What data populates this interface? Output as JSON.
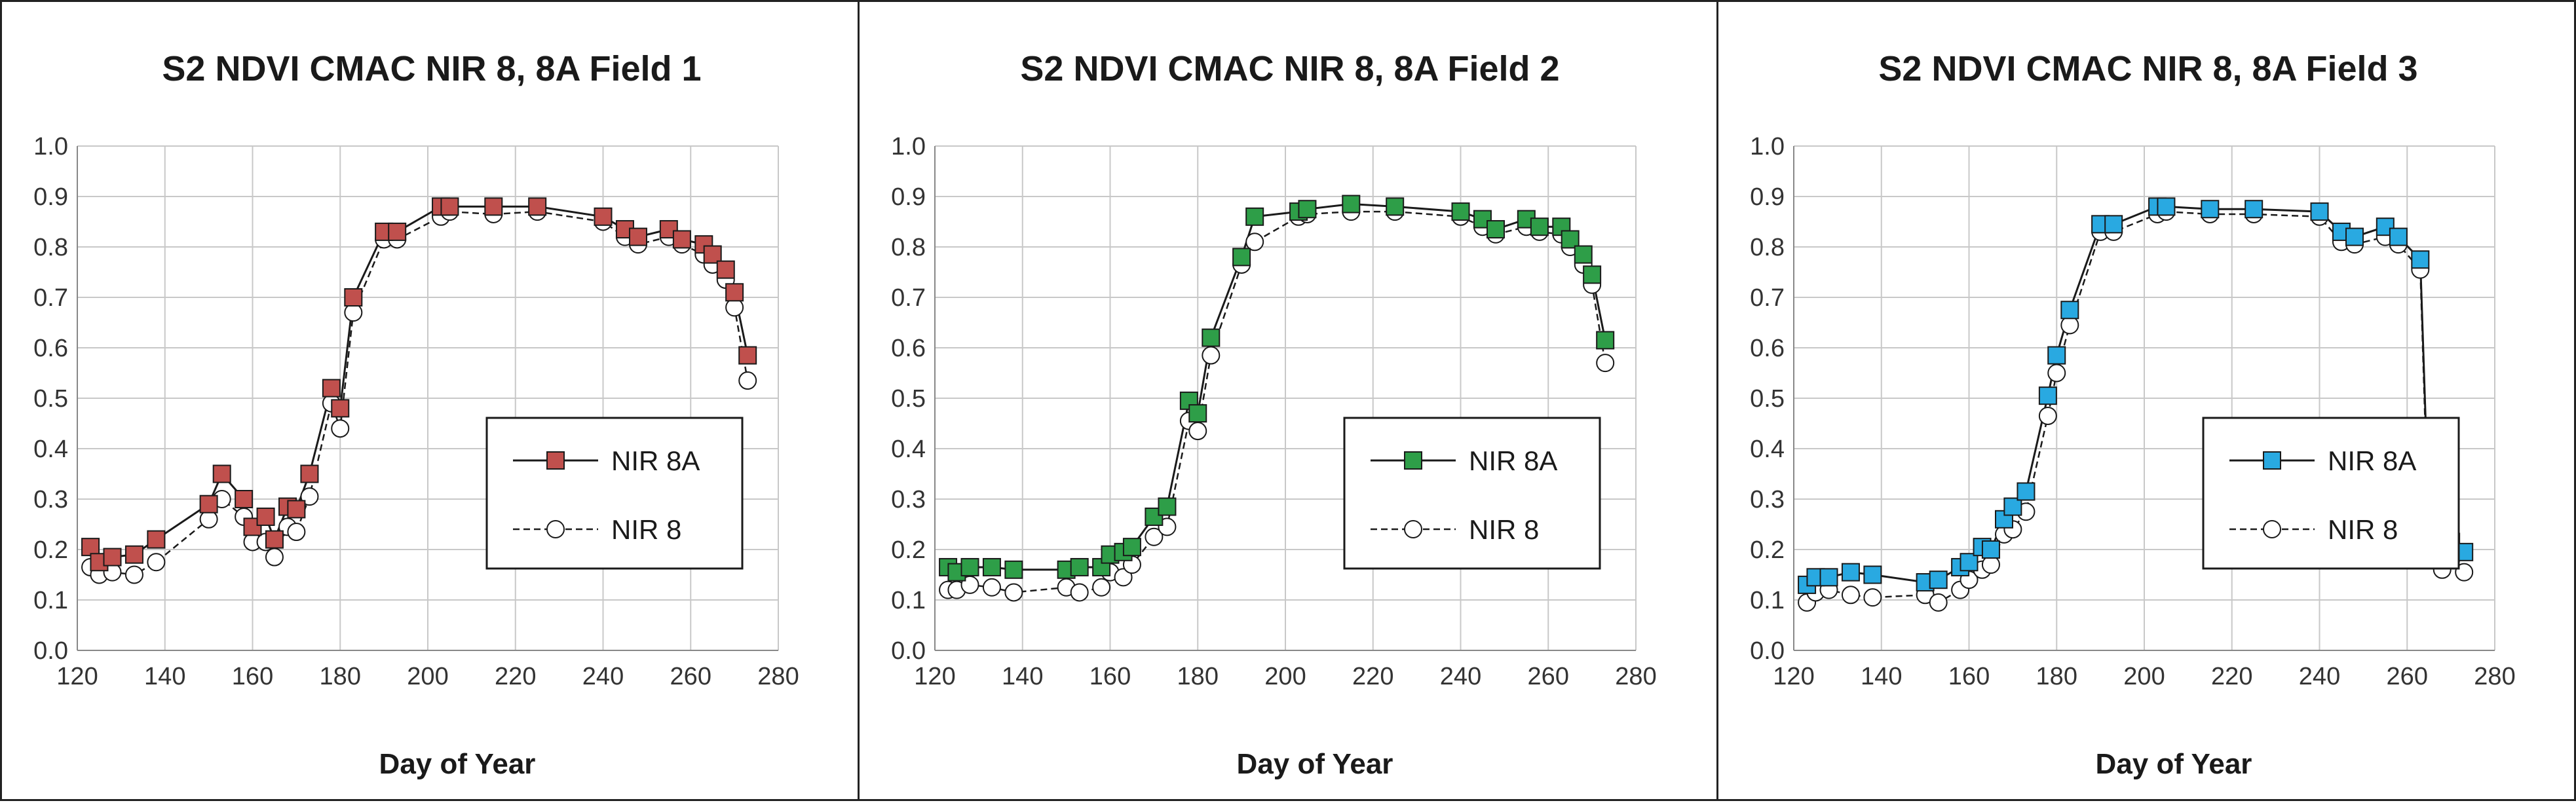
{
  "chart_data": [
    {
      "type": "line",
      "title": "S2 NDVI CMAC NIR 8, 8A  Field 1",
      "xlabel": "Day of Year",
      "ylabel": "",
      "xlim": [
        120,
        280
      ],
      "ylim": [
        0.0,
        1.0
      ],
      "xticks": [
        "120",
        "140",
        "160",
        "180",
        "200",
        "220",
        "240",
        "260",
        "280"
      ],
      "yticks": [
        "0.0",
        "0.1",
        "0.2",
        "0.3",
        "0.4",
        "0.5",
        "0.6",
        "0.7",
        "0.8",
        "0.9",
        "1.0"
      ],
      "grid": true,
      "legend_position": "center-right",
      "series": [
        {
          "name": "NIR 8A",
          "marker": "square",
          "line": "solid",
          "color": "#c0504d",
          "x": [
            123,
            125,
            128,
            133,
            138,
            150,
            153,
            158,
            160,
            163,
            165,
            168,
            170,
            173,
            178,
            180,
            183,
            190,
            193,
            203,
            205,
            215,
            225,
            240,
            245,
            248,
            255,
            258,
            263,
            265,
            268,
            270,
            273
          ],
          "y": [
            0.205,
            0.175,
            0.185,
            0.19,
            0.22,
            0.29,
            0.35,
            0.3,
            0.245,
            0.265,
            0.22,
            0.285,
            0.28,
            0.35,
            0.52,
            0.48,
            0.7,
            0.83,
            0.83,
            0.88,
            0.88,
            0.88,
            0.88,
            0.86,
            0.835,
            0.82,
            0.835,
            0.815,
            0.805,
            0.785,
            0.755,
            0.71,
            0.585
          ]
        },
        {
          "name": "NIR 8",
          "marker": "circle",
          "line": "dashed",
          "color": "#ffffff",
          "x": [
            123,
            125,
            128,
            133,
            138,
            150,
            153,
            158,
            160,
            163,
            165,
            168,
            170,
            173,
            178,
            180,
            183,
            190,
            193,
            203,
            205,
            215,
            225,
            240,
            245,
            248,
            255,
            258,
            263,
            265,
            268,
            270,
            273
          ],
          "y": [
            0.165,
            0.15,
            0.155,
            0.15,
            0.175,
            0.26,
            0.3,
            0.265,
            0.215,
            0.215,
            0.185,
            0.245,
            0.235,
            0.305,
            0.49,
            0.44,
            0.67,
            0.815,
            0.815,
            0.86,
            0.87,
            0.865,
            0.87,
            0.85,
            0.82,
            0.805,
            0.82,
            0.805,
            0.785,
            0.765,
            0.735,
            0.68,
            0.535
          ]
        }
      ]
    },
    {
      "type": "line",
      "title": "S2 NDVI CMAC NIR 8, 8A   Field 2",
      "xlabel": "Day of Year",
      "ylabel": "",
      "xlim": [
        120,
        280
      ],
      "ylim": [
        0.0,
        1.0
      ],
      "xticks": [
        "120",
        "140",
        "160",
        "180",
        "200",
        "220",
        "240",
        "260",
        "280"
      ],
      "yticks": [
        "0.0",
        "0.1",
        "0.2",
        "0.3",
        "0.4",
        "0.5",
        "0.6",
        "0.7",
        "0.8",
        "0.9",
        "1.0"
      ],
      "grid": true,
      "legend_position": "center-right",
      "series": [
        {
          "name": "NIR 8A",
          "marker": "square",
          "line": "solid",
          "color": "#2e9e48",
          "x": [
            123,
            125,
            128,
            133,
            138,
            150,
            153,
            158,
            160,
            163,
            165,
            170,
            173,
            178,
            180,
            183,
            190,
            193,
            203,
            205,
            215,
            225,
            240,
            245,
            248,
            255,
            258,
            263,
            265,
            268,
            270,
            273
          ],
          "y": [
            0.165,
            0.155,
            0.165,
            0.165,
            0.16,
            0.16,
            0.165,
            0.165,
            0.19,
            0.195,
            0.205,
            0.265,
            0.285,
            0.495,
            0.47,
            0.62,
            0.78,
            0.86,
            0.87,
            0.875,
            0.885,
            0.88,
            0.87,
            0.855,
            0.835,
            0.855,
            0.84,
            0.84,
            0.815,
            0.785,
            0.745,
            0.615
          ]
        },
        {
          "name": "NIR 8",
          "marker": "circle",
          "line": "dashed",
          "color": "#ffffff",
          "x": [
            123,
            125,
            128,
            133,
            138,
            150,
            153,
            158,
            160,
            163,
            165,
            170,
            173,
            178,
            180,
            183,
            190,
            193,
            203,
            205,
            215,
            225,
            240,
            245,
            248,
            255,
            258,
            263,
            265,
            268,
            270,
            273
          ],
          "y": [
            0.12,
            0.12,
            0.13,
            0.125,
            0.115,
            0.125,
            0.115,
            0.125,
            0.155,
            0.145,
            0.17,
            0.225,
            0.245,
            0.455,
            0.435,
            0.585,
            0.765,
            0.81,
            0.86,
            0.865,
            0.87,
            0.87,
            0.86,
            0.84,
            0.825,
            0.84,
            0.83,
            0.825,
            0.8,
            0.765,
            0.725,
            0.57
          ]
        }
      ]
    },
    {
      "type": "line",
      "title": "S2 NDVI CMAC NIR 8, 8A   Field 3",
      "xlabel": "Day of Year",
      "ylabel": "",
      "xlim": [
        120,
        280
      ],
      "ylim": [
        0.0,
        1.0
      ],
      "xticks": [
        "120",
        "140",
        "160",
        "180",
        "200",
        "220",
        "240",
        "260",
        "280"
      ],
      "yticks": [
        "0.0",
        "0.1",
        "0.2",
        "0.3",
        "0.4",
        "0.5",
        "0.6",
        "0.7",
        "0.8",
        "0.9",
        "1.0"
      ],
      "grid": true,
      "legend_position": "center-right",
      "series": [
        {
          "name": "NIR 8A",
          "marker": "square",
          "line": "solid",
          "color": "#29a9e1",
          "x": [
            123,
            125,
            128,
            133,
            138,
            150,
            153,
            158,
            160,
            163,
            165,
            168,
            170,
            173,
            178,
            180,
            183,
            190,
            193,
            203,
            205,
            215,
            225,
            240,
            245,
            248,
            255,
            258,
            263,
            265,
            268,
            270,
            273
          ],
          "y": [
            0.13,
            0.145,
            0.145,
            0.155,
            0.15,
            0.135,
            0.14,
            0.165,
            0.175,
            0.205,
            0.2,
            0.26,
            0.285,
            0.315,
            0.505,
            0.585,
            0.675,
            0.845,
            0.845,
            0.88,
            0.88,
            0.875,
            0.875,
            0.87,
            0.83,
            0.82,
            0.84,
            0.82,
            0.775,
            0.25,
            0.205,
            0.215,
            0.195
          ]
        },
        {
          "name": "NIR 8",
          "marker": "circle",
          "line": "dashed",
          "color": "#ffffff",
          "x": [
            123,
            125,
            128,
            133,
            138,
            150,
            153,
            158,
            160,
            163,
            165,
            168,
            170,
            173,
            178,
            180,
            183,
            190,
            193,
            203,
            205,
            215,
            225,
            240,
            245,
            248,
            255,
            258,
            263,
            265,
            268,
            270,
            273
          ],
          "y": [
            0.095,
            0.115,
            0.12,
            0.11,
            0.105,
            0.11,
            0.095,
            0.12,
            0.14,
            0.16,
            0.17,
            0.23,
            0.24,
            0.275,
            0.465,
            0.55,
            0.645,
            0.83,
            0.83,
            0.865,
            0.87,
            0.865,
            0.865,
            0.86,
            0.81,
            0.805,
            0.82,
            0.805,
            0.755,
            0.205,
            0.16,
            0.18,
            0.155
          ]
        }
      ]
    }
  ]
}
